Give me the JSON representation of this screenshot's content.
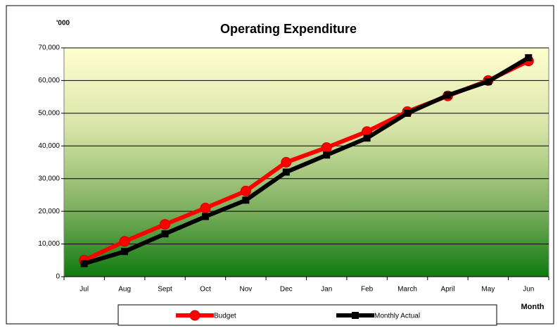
{
  "chart_data": {
    "type": "line",
    "title": "Operating Expenditure",
    "unit_label": "'000",
    "x_label": "Month",
    "categories": [
      "Jul",
      "Aug",
      "Sept",
      "Oct",
      "Nov",
      "Dec",
      "Jan",
      "Feb",
      "March",
      "April",
      "May",
      "Jun"
    ],
    "series": [
      {
        "name": "Budget",
        "color": "#ff0000",
        "marker": "circle",
        "values": [
          5000,
          10800,
          16000,
          21000,
          26200,
          35000,
          39500,
          44400,
          50500,
          55300,
          60000,
          66000
        ]
      },
      {
        "name": "Monthly Actual",
        "color": "#000000",
        "marker": "square",
        "values": [
          4000,
          7700,
          13100,
          18400,
          23400,
          32000,
          37200,
          42400,
          50000,
          55500,
          59700,
          67000
        ]
      }
    ],
    "ylim": [
      0,
      70000
    ],
    "yticks": [
      0,
      {
        "value": 10000,
        "label": "10,000"
      },
      {
        "value": 20000,
        "label": "20,000"
      },
      {
        "value": 30000,
        "label": "30,000"
      },
      {
        "value": 40000,
        "label": "40,000"
      },
      {
        "value": 50000,
        "label": "50,000"
      },
      {
        "value": 60000,
        "label": "60,000"
      },
      {
        "value": 70000,
        "label": "70,000"
      }
    ],
    "grid": true,
    "legend": "bottom"
  }
}
